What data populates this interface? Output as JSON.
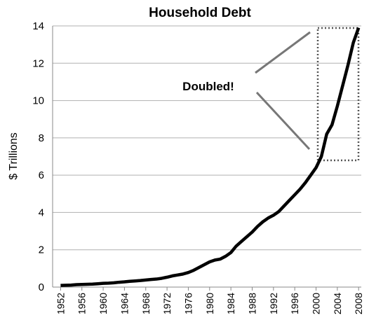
{
  "chart_data": {
    "type": "line",
    "title": "Household Debt",
    "ylabel": "$ Trillions",
    "annotation": "Doubled!",
    "x": [
      1952,
      1953,
      1954,
      1955,
      1956,
      1957,
      1958,
      1959,
      1960,
      1961,
      1962,
      1963,
      1964,
      1965,
      1966,
      1967,
      1968,
      1969,
      1970,
      1971,
      1972,
      1973,
      1974,
      1975,
      1976,
      1977,
      1978,
      1979,
      1980,
      1981,
      1982,
      1983,
      1984,
      1985,
      1986,
      1987,
      1988,
      1989,
      1990,
      1991,
      1992,
      1993,
      1994,
      1995,
      1996,
      1997,
      1998,
      1999,
      2000,
      2001,
      2002,
      2003,
      2004,
      2005,
      2006,
      2007,
      2008
    ],
    "series": [
      {
        "color": "#000000",
        "values": [
          0.09,
          0.1,
          0.11,
          0.13,
          0.14,
          0.15,
          0.16,
          0.18,
          0.2,
          0.21,
          0.23,
          0.26,
          0.28,
          0.31,
          0.33,
          0.35,
          0.38,
          0.41,
          0.43,
          0.47,
          0.53,
          0.6,
          0.65,
          0.7,
          0.78,
          0.9,
          1.05,
          1.2,
          1.35,
          1.45,
          1.5,
          1.65,
          1.85,
          2.2,
          2.45,
          2.7,
          2.95,
          3.25,
          3.5,
          3.7,
          3.85,
          4.05,
          4.35,
          4.65,
          4.95,
          5.25,
          5.6,
          6.0,
          6.4,
          7.0,
          8.2,
          8.7,
          9.7,
          10.8,
          11.9,
          13.1,
          13.9
        ]
      }
    ],
    "xlim": [
      1950.5,
      2008.5
    ],
    "xticks": [
      1952,
      1956,
      1960,
      1964,
      1968,
      1972,
      1976,
      1980,
      1984,
      1988,
      1992,
      1996,
      2000,
      2004,
      2008
    ],
    "ylim": [
      0,
      14
    ],
    "yticks": [
      0,
      2,
      4,
      6,
      8,
      10,
      12,
      14
    ],
    "grid": true
  }
}
